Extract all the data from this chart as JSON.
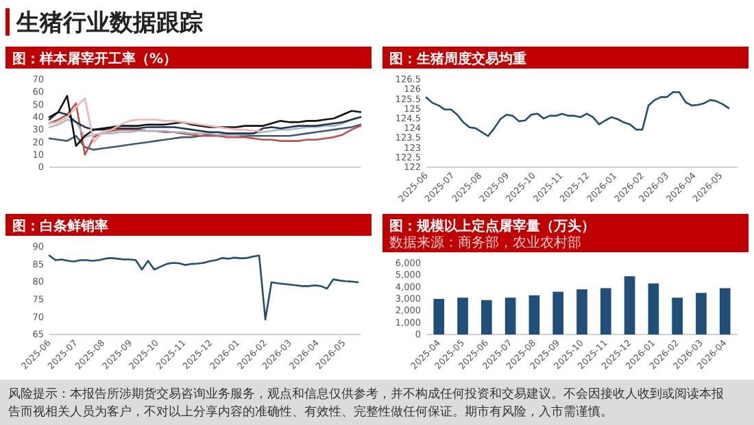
{
  "chart_data": [
    {
      "type": "line",
      "title": "图：样本屠宰开工率（%）",
      "annotations": [
        "生猪行业数据跟踪",
        "风险提示：本报告所涉期货交易咨询业务服务，观点和信息仅供参考，并不构成任何投资和交易建议。不会因接收人收到或阅读本报告而视相关人员为客户，不对以上分享内容的准确性、有效性、完整性做任何保证。期市有风险，入市需谨慎。"
      ],
      "categories": [
        null,
        null,
        null,
        null,
        null,
        null,
        null,
        null,
        null,
        null,
        null,
        null,
        null,
        null,
        null,
        null,
        null,
        null,
        null,
        null,
        null,
        null,
        null,
        null,
        null,
        null,
        null,
        null,
        null,
        null,
        null,
        null,
        null,
        null,
        null,
        null
      ],
      "tick_labels": "y",
      "ylim": [
        0,
        70
      ],
      "yticks": [
        0,
        10,
        20,
        30,
        40,
        50,
        60,
        70
      ],
      "series": [
        {
          "color": "#3e5a73",
          "values": [
            23,
            22,
            21,
            25,
            16,
            14,
            15,
            16,
            17,
            18,
            19,
            20,
            21,
            22,
            23,
            24,
            24,
            25,
            26,
            26,
            26,
            26,
            25,
            25,
            25,
            25,
            25,
            25,
            26,
            27,
            28,
            29,
            30,
            31,
            32,
            34
          ]
        },
        {
          "color": "#c0504d",
          "values": [
            35,
            38,
            42,
            51,
            10,
            24,
            28,
            29,
            30,
            30,
            30,
            29,
            29,
            28,
            28,
            27,
            26,
            25,
            25,
            25,
            24,
            24,
            24,
            23,
            22,
            22,
            21,
            21,
            21,
            22,
            22,
            23,
            24,
            26,
            30,
            33
          ]
        },
        {
          "color": "#a6b8c8",
          "values": [
            32,
            34,
            38,
            36,
            24,
            26,
            27,
            27,
            28,
            28,
            29,
            29,
            29,
            29,
            28,
            28,
            27,
            27,
            27,
            26,
            26,
            26,
            26,
            27,
            28,
            29,
            30,
            30,
            31,
            32,
            32,
            33,
            33,
            35,
            38,
            40
          ]
        },
        {
          "color": "#1f3550",
          "values": [
            38,
            44,
            42,
            36,
            32,
            30,
            30,
            31,
            31,
            31,
            31,
            32,
            32,
            32,
            32,
            31,
            30,
            29,
            28,
            28,
            27,
            27,
            27,
            27,
            31,
            32,
            31,
            32,
            33,
            33,
            33,
            34,
            35,
            36,
            38,
            40
          ]
        },
        {
          "color": "#111111",
          "values": [
            40,
            44,
            57,
            17,
            25,
            30,
            31,
            32,
            33,
            33,
            33,
            34,
            34,
            34,
            35,
            36,
            34,
            33,
            32,
            32,
            32,
            32,
            33,
            33,
            33,
            35,
            37,
            36,
            36,
            37,
            37,
            38,
            39,
            42,
            45,
            44
          ]
        },
        {
          "color": "#f2b5b5",
          "values": [
            35,
            36,
            40,
            48,
            55,
            20,
            28,
            30,
            34,
            37,
            38,
            38,
            38,
            37,
            37,
            36,
            35,
            34,
            33,
            32,
            31,
            30,
            30,
            29,
            29,
            null,
            null,
            null,
            null,
            null,
            null,
            null,
            null,
            null,
            null,
            null
          ]
        }
      ]
    },
    {
      "type": "line",
      "title": "图：生猪周度交易均重",
      "color": "#1f4e6e",
      "x": [
        "2025-06-01",
        "2025-06-08",
        "2025-06-15",
        "2025-06-22",
        "2025-06-29",
        "2025-07-06",
        "2025-07-13",
        "2025-07-20",
        "2025-07-27",
        "2025-08-03",
        "2025-08-10",
        "2025-08-17",
        "2025-08-24",
        "2025-08-31",
        "2025-09-07",
        "2025-09-14",
        "2025-09-21",
        "2025-09-28",
        "2025-10-05",
        "2025-10-12",
        "2025-10-19",
        "2025-10-26",
        "2025-11-02",
        "2025-11-09",
        "2025-11-16",
        "2025-11-23",
        "2025-11-30",
        "2025-12-07",
        "2025-12-14",
        "2025-12-21",
        "2025-12-28",
        "2026-01-04",
        "2026-01-11",
        "2026-01-18",
        "2026-01-25",
        "2026-02-01",
        "2026-02-08",
        "2026-02-15",
        "2026-02-22",
        "2026-03-01",
        "2026-03-08",
        "2026-03-15",
        "2026-03-22",
        "2026-03-29",
        "2026-04-05",
        "2026-04-12",
        "2026-04-19",
        "2026-04-26",
        "2026-05-03",
        "2026-05-10"
      ],
      "values": [
        125.58,
        125.3,
        125.17,
        124.96,
        124.96,
        124.7,
        124.3,
        124.05,
        124.0,
        123.8,
        123.6,
        124.0,
        124.47,
        124.7,
        124.64,
        124.36,
        124.4,
        124.7,
        124.75,
        124.5,
        124.64,
        124.64,
        124.74,
        124.64,
        124.64,
        124.57,
        124.75,
        124.57,
        124.2,
        124.4,
        124.57,
        124.47,
        124.3,
        124.2,
        123.93,
        123.93,
        125.17,
        125.45,
        125.6,
        125.6,
        125.86,
        125.85,
        125.34,
        125.17,
        125.2,
        125.28,
        125.45,
        125.39,
        125.24,
        125.03
      ],
      "xlim": [
        "2025-06-01",
        "2026-05-20"
      ],
      "xticks": [
        {
          "value": "2025-06-01",
          "label": "2025-06"
        },
        {
          "value": "2025-07-01",
          "label": "2025-07"
        },
        {
          "value": "2025-08-01",
          "label": "2025-08"
        },
        {
          "value": "2025-09-01",
          "label": "2025-09"
        },
        {
          "value": "2025-10-01",
          "label": "2025-10"
        },
        {
          "value": "2025-11-01",
          "label": "2025-11"
        },
        {
          "value": "2025-12-01",
          "label": "2025-12"
        },
        {
          "value": "2026-01-01",
          "label": "2026-01"
        },
        {
          "value": "2026-02-01",
          "label": "2026-02"
        },
        {
          "value": "2026-03-01",
          "label": "2026-03"
        },
        {
          "value": "2026-04-01",
          "label": "2026-04"
        },
        {
          "value": "2026-05-01",
          "label": "2026-05"
        }
      ],
      "ylim": [
        122,
        126.5
      ],
      "yticks": [
        122,
        122.5,
        123,
        123.5,
        124,
        124.5,
        125,
        125.5,
        126,
        126.5
      ]
    },
    {
      "type": "line",
      "title": "图：白条鲜销率",
      "color": "#1f4e6e",
      "x": [
        "2025-06-01",
        "2025-06-08",
        "2025-06-15",
        "2025-06-22",
        "2025-06-29",
        "2025-07-06",
        "2025-07-13",
        "2025-07-20",
        "2025-07-27",
        "2025-08-03",
        "2025-08-10",
        "2025-08-17",
        "2025-08-24",
        "2025-08-31",
        "2025-09-07",
        "2025-09-14",
        "2025-09-21",
        "2025-09-28",
        "2025-10-05",
        "2025-10-12",
        "2025-10-19",
        "2025-10-26",
        "2025-11-02",
        "2025-11-09",
        "2025-11-16",
        "2025-11-23",
        "2025-11-30",
        "2025-12-07",
        "2025-12-14",
        "2025-12-21",
        "2025-12-28",
        "2026-01-04",
        "2026-01-11",
        "2026-01-18",
        "2026-01-25",
        "2026-02-01",
        "2026-02-08",
        "2026-02-15",
        "2026-02-22",
        "2026-03-01",
        "2026-03-08",
        "2026-03-15",
        "2026-03-22",
        "2026-03-29",
        "2026-04-05",
        "2026-04-12",
        "2026-04-19",
        "2026-04-26",
        "2026-05-03",
        "2026-05-10",
        "2026-05-17"
      ],
      "values": [
        87.5,
        86.2,
        86.4,
        86.0,
        85.8,
        86.2,
        86.2,
        86.0,
        86.2,
        86.6,
        86.8,
        86.6,
        86.4,
        86.4,
        86.2,
        83.5,
        86.0,
        83.5,
        84.3,
        85.1,
        85.4,
        85.3,
        84.8,
        85.1,
        85.2,
        85.4,
        85.9,
        86.2,
        86.8,
        86.6,
        86.9,
        86.7,
        86.8,
        87.2,
        87.5,
        69.3,
        79.9,
        79.6,
        79.4,
        79.2,
        79.0,
        78.8,
        78.8,
        79.0,
        78.8,
        78.1,
        80.7,
        80.4,
        80.2,
        80.1,
        79.9
      ],
      "xlim": [
        "2025-06-01",
        "2026-05-20"
      ],
      "xticks": [
        {
          "value": "2025-06-01",
          "label": "2025-06"
        },
        {
          "value": "2025-07-01",
          "label": "2025-07"
        },
        {
          "value": "2025-08-01",
          "label": "2025-08"
        },
        {
          "value": "2025-09-01",
          "label": "2025-09"
        },
        {
          "value": "2025-10-01",
          "label": "2025-10"
        },
        {
          "value": "2025-11-01",
          "label": "2025-11"
        },
        {
          "value": "2025-12-01",
          "label": "2025-12"
        },
        {
          "value": "2026-01-01",
          "label": "2026-01"
        },
        {
          "value": "2026-02-01",
          "label": "2026-02"
        },
        {
          "value": "2026-03-01",
          "label": "2026-03"
        },
        {
          "value": "2026-04-01",
          "label": "2026-04"
        },
        {
          "value": "2026-05-01",
          "label": "2026-05"
        }
      ],
      "ylim": [
        65,
        90
      ],
      "yticks": [
        65,
        70,
        75,
        80,
        85,
        90
      ]
    },
    {
      "type": "bar",
      "title": "图：规模以上定点屠宰量（万头）",
      "subtitle": "数据来源：商务部，农业农村部",
      "color": "#1f4e79",
      "categories": [
        "2025-04",
        "2025-05",
        "2025-06",
        "2025-07",
        "2025-08",
        "2025-09",
        "2025-10",
        "2025-11",
        "2025-12",
        "2026-01",
        "2026-02",
        "2026-03",
        "2026-04"
      ],
      "values": [
        3000,
        3100,
        2900,
        3100,
        3300,
        3600,
        3800,
        3900,
        4900,
        4300,
        3100,
        3500,
        3900
      ],
      "ylim": [
        0,
        6000
      ],
      "yticks": [
        0,
        {
          "value": 1000,
          "label": "1,000"
        },
        {
          "value": 2000,
          "label": "2,000"
        },
        {
          "value": 3000,
          "label": "3,000"
        },
        {
          "value": 4000,
          "label": "4,000"
        },
        {
          "value": 5000,
          "label": "5,000"
        },
        {
          "value": 6000,
          "label": "6,000"
        }
      ]
    }
  ]
}
